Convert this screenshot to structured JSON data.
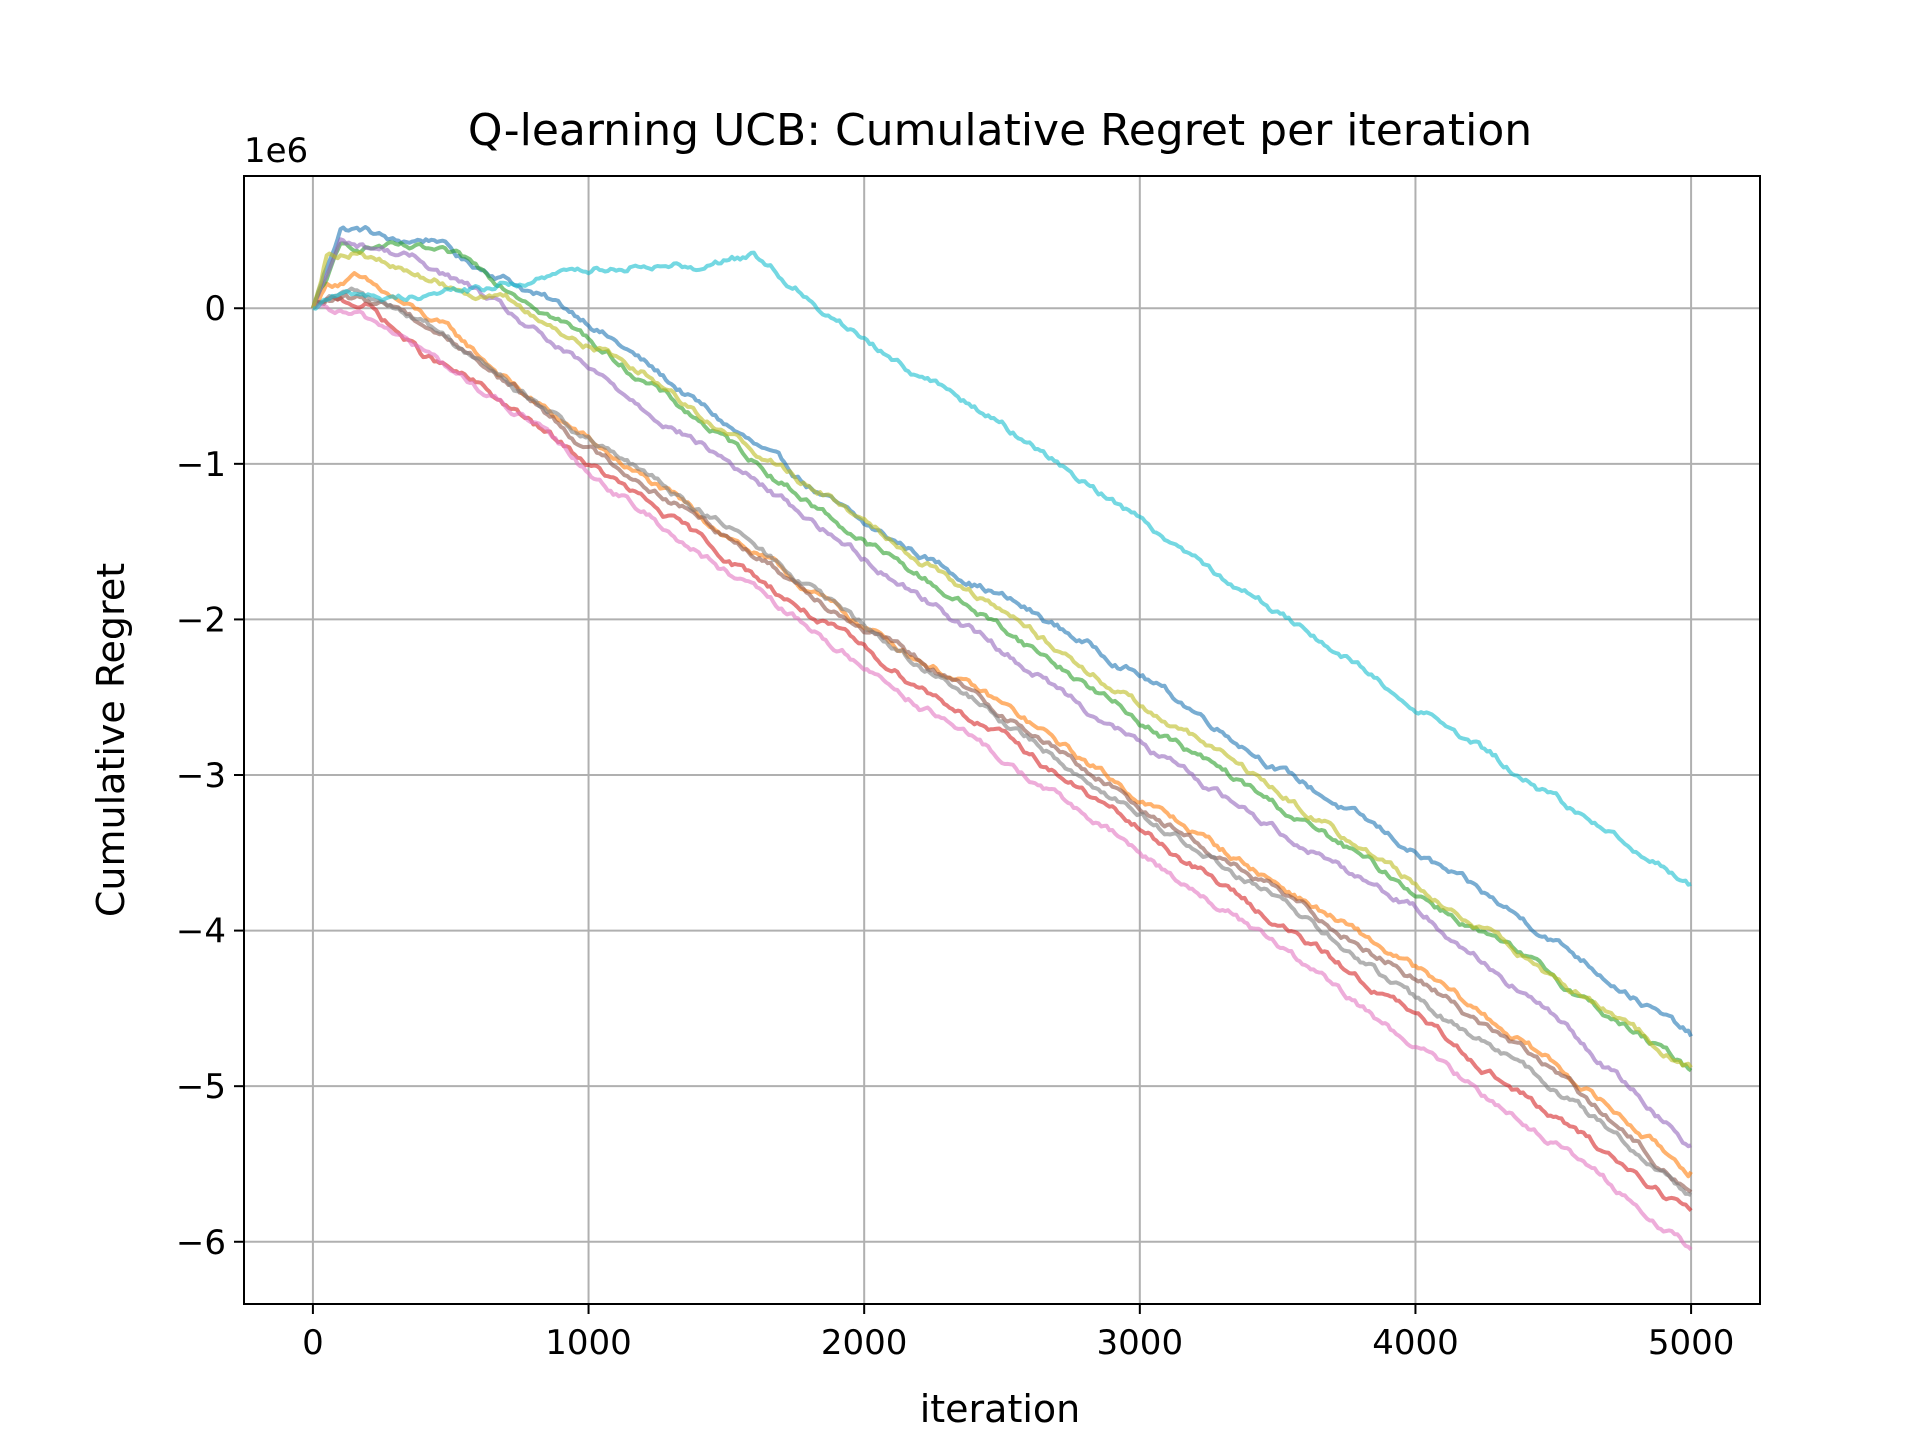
{
  "chart_data": {
    "type": "line",
    "title": "Q-learning UCB: Cumulative Regret per iteration",
    "xlabel": "iteration",
    "ylabel": "Cumulative Regret",
    "offset_text": "1e6",
    "xlim": [
      -250,
      5250
    ],
    "ylim": [
      -6.4,
      0.85
    ],
    "y_scale_multiplier": 1000000,
    "xticks": [
      0,
      1000,
      2000,
      3000,
      4000,
      5000
    ],
    "xtick_labels": [
      "0",
      "1000",
      "2000",
      "3000",
      "4000",
      "5000"
    ],
    "yticks": [
      0,
      -1,
      -2,
      -3,
      -4,
      -5,
      -6
    ],
    "ytick_labels": [
      "0",
      "−1",
      "−2",
      "−3",
      "−4",
      "−5",
      "−6"
    ],
    "grid": true,
    "legend": "none",
    "series": [
      {
        "color": "#1f77b4",
        "x": [
          0,
          100,
          200,
          300,
          450,
          550,
          700,
          800,
          1000,
          1200,
          1500,
          2000,
          2500,
          3000,
          3500,
          4000,
          4500,
          5000
        ],
        "values": [
          0,
          0.52,
          0.5,
          0.42,
          0.45,
          0.3,
          0.2,
          0.1,
          -0.08,
          -0.35,
          -0.75,
          -1.4,
          -1.85,
          -2.35,
          -2.95,
          -3.5,
          -4.05,
          -4.68
        ]
      },
      {
        "color": "#ff7f0e",
        "x": [
          0,
          50,
          150,
          300,
          500,
          800,
          1000,
          1500,
          2000,
          2500,
          3000,
          3500,
          4000,
          4500,
          5000
        ],
        "values": [
          0,
          0.15,
          0.2,
          0.05,
          -0.15,
          -0.6,
          -0.85,
          -1.45,
          -2.05,
          -2.55,
          -3.15,
          -3.7,
          -4.25,
          -4.85,
          -5.55
        ]
      },
      {
        "color": "#2ca02c",
        "x": [
          0,
          100,
          250,
          450,
          550,
          700,
          800,
          1000,
          1500,
          2000,
          2500,
          3000,
          3500,
          4000,
          4500,
          5000
        ],
        "values": [
          0,
          0.38,
          0.4,
          0.35,
          0.3,
          0.15,
          0.05,
          -0.2,
          -0.85,
          -1.5,
          -2.05,
          -2.65,
          -3.2,
          -3.75,
          -4.3,
          -4.9
        ]
      },
      {
        "color": "#d62728",
        "x": [
          0,
          50,
          100,
          200,
          400,
          600,
          800,
          1000,
          1500,
          2000,
          2500,
          3000,
          3500,
          4000,
          4500,
          5000
        ],
        "values": [
          0,
          0.03,
          0.05,
          0.02,
          -0.3,
          -0.5,
          -0.75,
          -1.0,
          -1.6,
          -2.2,
          -2.75,
          -3.35,
          -3.95,
          -4.55,
          -5.2,
          -5.8
        ]
      },
      {
        "color": "#9467bd",
        "x": [
          0,
          100,
          250,
          400,
          600,
          800,
          1000,
          1500,
          2000,
          2500,
          3000,
          3500,
          4000,
          4500,
          5000
        ],
        "values": [
          0,
          0.42,
          0.38,
          0.3,
          0.1,
          -0.15,
          -0.4,
          -0.98,
          -1.6,
          -2.2,
          -2.8,
          -3.35,
          -3.85,
          -4.55,
          -5.38
        ]
      },
      {
        "color": "#8c564b",
        "x": [
          0,
          50,
          150,
          300,
          500,
          800,
          1000,
          1500,
          2000,
          2500,
          3000,
          3500,
          4000,
          4500,
          5000
        ],
        "values": [
          0,
          0.05,
          0.05,
          0.02,
          -0.2,
          -0.6,
          -0.9,
          -1.45,
          -2.05,
          -2.6,
          -3.2,
          -3.75,
          -4.3,
          -4.9,
          -5.68
        ]
      },
      {
        "color": "#e377c2",
        "x": [
          0,
          150,
          300,
          500,
          800,
          1000,
          1500,
          2000,
          2500,
          3000,
          3500,
          4000,
          4500,
          5000
        ],
        "values": [
          0,
          -0.05,
          -0.15,
          -0.4,
          -0.75,
          -1.05,
          -1.7,
          -2.3,
          -2.9,
          -3.5,
          -4.1,
          -4.75,
          -5.35,
          -6.05
        ]
      },
      {
        "color": "#7f7f7f",
        "x": [
          0,
          150,
          300,
          500,
          800,
          1000,
          1500,
          2000,
          2500,
          3000,
          3500,
          4000,
          4500,
          5000
        ],
        "values": [
          0,
          0.1,
          0.02,
          -0.2,
          -0.6,
          -0.85,
          -1.4,
          -2.05,
          -2.65,
          -3.25,
          -3.8,
          -4.45,
          -5.0,
          -5.7
        ]
      },
      {
        "color": "#bcbd22",
        "x": [
          0,
          50,
          150,
          300,
          500,
          700,
          900,
          1200,
          1500,
          2000,
          2500,
          3000,
          3500,
          4000,
          4500,
          5000
        ],
        "values": [
          0,
          0.35,
          0.38,
          0.25,
          0.15,
          0.05,
          -0.15,
          -0.4,
          -0.8,
          -1.35,
          -1.95,
          -2.55,
          -3.1,
          -3.7,
          -4.3,
          -4.88
        ]
      },
      {
        "color": "#17becf",
        "x": [
          0,
          50,
          200,
          300,
          400,
          600,
          800,
          1000,
          1200,
          1400,
          1500,
          1600,
          1750,
          2000,
          2500,
          3000,
          3500,
          4000,
          4500,
          5000
        ],
        "values": [
          0,
          0.07,
          0.1,
          0.05,
          0.1,
          0.12,
          0.18,
          0.25,
          0.3,
          0.28,
          0.32,
          0.33,
          0.15,
          -0.2,
          -0.75,
          -1.35,
          -1.95,
          -2.55,
          -3.15,
          -3.7
        ]
      }
    ]
  }
}
